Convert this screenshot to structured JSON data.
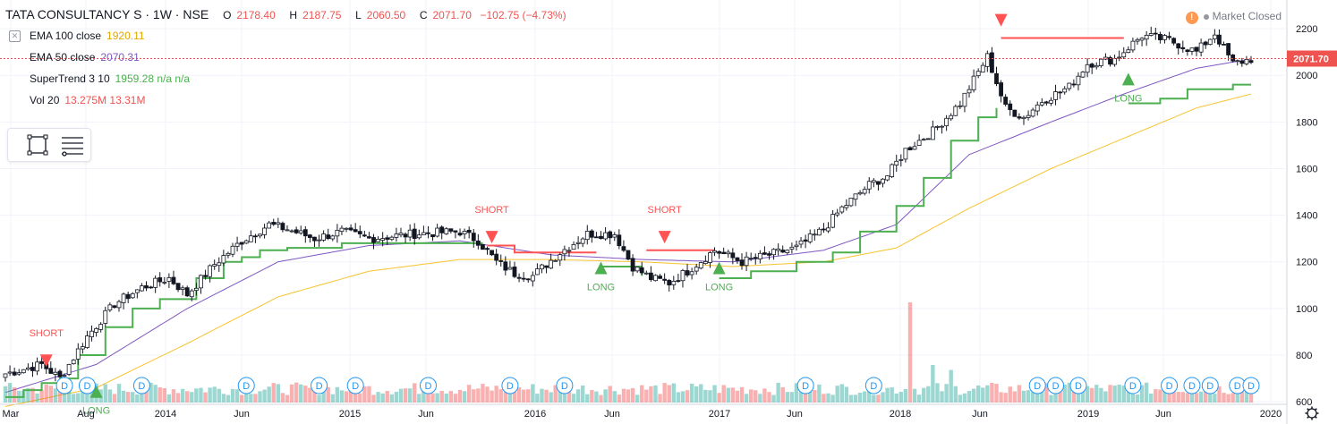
{
  "header": {
    "symbol": "TATA CONSULTANCY S",
    "interval": "1W",
    "exchange": "NSE",
    "open_label": "O",
    "open": "2178.40",
    "high_label": "H",
    "high": "2187.75",
    "low_label": "L",
    "low": "2060.50",
    "close_label": "C",
    "close": "2071.70",
    "change": "−102.75 (−4.73%)"
  },
  "indicators": [
    {
      "name": "EMA 100 close",
      "value": "1920.11",
      "color": "#f5c518"
    },
    {
      "name": "EMA 50 close",
      "value": "2070.31",
      "color": "#7e57c2"
    },
    {
      "name": "SuperTrend 3 10",
      "value": "1959.28 n/a n/a",
      "color": "#4caf50"
    },
    {
      "name": "Vol 20",
      "value": "13.275M 13.31M",
      "color": "#ef5350"
    }
  ],
  "status": {
    "market": "Market Closed",
    "warning_icon": "exclamation-icon"
  },
  "colors": {
    "up": "#26a69a",
    "down": "#ef5350",
    "super_up": "#4caf50",
    "super_down": "#ff5252",
    "ema100": "#f7c32e",
    "ema50": "#7e57c2",
    "grid": "#f0f3fa",
    "axis_text": "#131722"
  },
  "chart_data": {
    "type": "candlestick",
    "title": "TATA CONSULTANCY S · 1W · NSE",
    "ylim": [
      520,
      2300
    ],
    "y_ticks": [
      600,
      800,
      1000,
      1200,
      1400,
      1600,
      1800,
      2000,
      2200
    ],
    "x_ticks": [
      "Mar",
      "Aug",
      "2014",
      "Jun",
      "2015",
      "Jun",
      "2016",
      "Jun",
      "2017",
      "Jun",
      "2018",
      "Jun",
      "2019",
      "Jun",
      "2020"
    ],
    "last_price": "2071.70",
    "close_anchors": [
      [
        0,
        720
      ],
      [
        8,
        760
      ],
      [
        12,
        700
      ],
      [
        18,
        880
      ],
      [
        24,
        1020
      ],
      [
        30,
        1090
      ],
      [
        36,
        1130
      ],
      [
        40,
        1060
      ],
      [
        46,
        1190
      ],
      [
        52,
        1290
      ],
      [
        58,
        1360
      ],
      [
        62,
        1340
      ],
      [
        68,
        1300
      ],
      [
        74,
        1330
      ],
      [
        80,
        1300
      ],
      [
        90,
        1320
      ],
      [
        100,
        1330
      ],
      [
        104,
        1290
      ],
      [
        108,
        1200
      ],
      [
        112,
        1150
      ],
      [
        116,
        1140
      ],
      [
        122,
        1240
      ],
      [
        128,
        1320
      ],
      [
        134,
        1320
      ],
      [
        138,
        1180
      ],
      [
        142,
        1130
      ],
      [
        146,
        1110
      ],
      [
        150,
        1160
      ],
      [
        156,
        1250
      ],
      [
        162,
        1200
      ],
      [
        168,
        1230
      ],
      [
        174,
        1260
      ],
      [
        180,
        1340
      ],
      [
        184,
        1430
      ],
      [
        190,
        1530
      ],
      [
        194,
        1570
      ],
      [
        198,
        1680
      ],
      [
        204,
        1760
      ],
      [
        210,
        1880
      ],
      [
        216,
        2080
      ],
      [
        220,
        1860
      ],
      [
        224,
        1820
      ],
      [
        228,
        1890
      ],
      [
        234,
        1950
      ],
      [
        238,
        2050
      ],
      [
        244,
        2070
      ],
      [
        250,
        2170
      ],
      [
        256,
        2150
      ],
      [
        262,
        2100
      ],
      [
        266,
        2180
      ],
      [
        270,
        2050
      ],
      [
        274,
        2070
      ]
    ],
    "supertrend": [
      {
        "trend": "up",
        "points": [
          [
            0,
            620
          ],
          [
            4,
            650
          ],
          [
            8,
            680
          ],
          [
            12,
            700
          ],
          [
            16,
            800
          ],
          [
            22,
            920
          ],
          [
            28,
            1000
          ],
          [
            34,
            1040
          ],
          [
            38,
            1040
          ],
          [
            42,
            1130
          ],
          [
            48,
            1200
          ],
          [
            52,
            1220
          ],
          [
            56,
            1250
          ],
          [
            62,
            1260
          ],
          [
            66,
            1260
          ],
          [
            74,
            1280
          ],
          [
            90,
            1280
          ],
          [
            105,
            1280
          ]
        ]
      },
      {
        "trend": "down",
        "points": [
          [
            106,
            1270
          ],
          [
            112,
            1240
          ],
          [
            116,
            1240
          ],
          [
            130,
            1240
          ]
        ]
      },
      {
        "trend": "up",
        "points": [
          [
            131,
            1180
          ],
          [
            138,
            1180
          ],
          [
            140,
            1140
          ]
        ]
      },
      {
        "trend": "down",
        "points": [
          [
            141,
            1250
          ],
          [
            150,
            1250
          ],
          [
            156,
            1250
          ]
        ]
      },
      {
        "trend": "up",
        "points": [
          [
            157,
            1130
          ],
          [
            164,
            1160
          ],
          [
            174,
            1200
          ],
          [
            182,
            1240
          ],
          [
            188,
            1330
          ],
          [
            196,
            1440
          ],
          [
            202,
            1560
          ],
          [
            208,
            1720
          ],
          [
            214,
            1820
          ],
          [
            218,
            1860
          ]
        ]
      },
      {
        "trend": "down",
        "points": [
          [
            219,
            2160
          ],
          [
            232,
            2160
          ],
          [
            242,
            2160
          ],
          [
            246,
            2160
          ]
        ]
      },
      {
        "trend": "up",
        "points": [
          [
            247,
            1880
          ],
          [
            254,
            1900
          ],
          [
            260,
            1940
          ],
          [
            270,
            1960
          ],
          [
            274,
            1960
          ]
        ]
      }
    ],
    "ema50": [
      [
        0,
        640
      ],
      [
        20,
        760
      ],
      [
        40,
        1000
      ],
      [
        60,
        1200
      ],
      [
        80,
        1270
      ],
      [
        100,
        1290
      ],
      [
        120,
        1230
      ],
      [
        140,
        1210
      ],
      [
        160,
        1200
      ],
      [
        180,
        1250
      ],
      [
        196,
        1360
      ],
      [
        212,
        1660
      ],
      [
        230,
        1800
      ],
      [
        246,
        1920
      ],
      [
        262,
        2030
      ],
      [
        274,
        2070
      ]
    ],
    "ema100": [
      [
        0,
        580
      ],
      [
        20,
        660
      ],
      [
        40,
        850
      ],
      [
        60,
        1050
      ],
      [
        80,
        1160
      ],
      [
        100,
        1210
      ],
      [
        120,
        1210
      ],
      [
        140,
        1200
      ],
      [
        160,
        1180
      ],
      [
        180,
        1200
      ],
      [
        196,
        1260
      ],
      [
        212,
        1430
      ],
      [
        230,
        1600
      ],
      [
        246,
        1730
      ],
      [
        262,
        1860
      ],
      [
        274,
        1920
      ]
    ],
    "signals": [
      {
        "type": "SHORT",
        "index": 9,
        "price": 780
      },
      {
        "type": "LONG",
        "index": 20,
        "price": 640
      },
      {
        "type": "SHORT",
        "index": 107,
        "price": 1310
      },
      {
        "type": "LONG",
        "index": 131,
        "price": 1170
      },
      {
        "type": "SHORT",
        "index": 145,
        "price": 1310
      },
      {
        "type": "LONG",
        "index": 157,
        "price": 1170
      },
      {
        "type": "SHORT",
        "index": 219,
        "price": 2240
      },
      {
        "type": "LONG",
        "index": 247,
        "price": 1980
      }
    ],
    "volume_spikes": [
      [
        199,
        4.0
      ],
      [
        204,
        1.5
      ],
      [
        208,
        1.3
      ]
    ],
    "dividend_marker": "D",
    "dividend_indices": [
      13,
      18,
      30,
      53,
      69,
      77,
      93,
      111,
      123,
      176,
      191,
      227,
      231,
      236,
      248,
      256,
      261,
      265,
      271,
      274
    ]
  }
}
